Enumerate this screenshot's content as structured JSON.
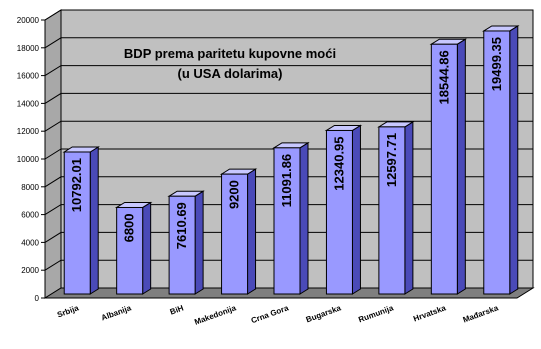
{
  "chart_data": {
    "type": "bar",
    "title_lines": [
      "BDP prema paritetu kupovne moći",
      "(u USA dolarima)"
    ],
    "categories": [
      "Srbija",
      "Albanija",
      "BiH",
      "Makedonija",
      "Crna Gora",
      "Bugarska",
      "Rumunija",
      "Hrvatska",
      "Mađarska"
    ],
    "values": [
      10792.01,
      6800,
      7610.69,
      9200,
      11091.86,
      12340.95,
      12597.71,
      18544.86,
      19499.35
    ],
    "value_labels": [
      "10792.01",
      "6800",
      "7610.69",
      "9200",
      "11091.86",
      "12340.95",
      "12597.71",
      "18544.86",
      "19499.35"
    ],
    "ylim": [
      0,
      20000
    ],
    "yticks": [
      "0",
      "2000",
      "4000",
      "6000",
      "8000",
      "10000",
      "12000",
      "14000",
      "16000",
      "18000",
      "20000"
    ],
    "grid": true,
    "legend": "none",
    "colors": {
      "bar_front": "#9999ff",
      "bar_side": "#4a4ab8",
      "bar_top": "#c8c8ff",
      "wall": "#c0c0c0",
      "floor": "#7f7f7f",
      "edge": "#000000"
    }
  }
}
